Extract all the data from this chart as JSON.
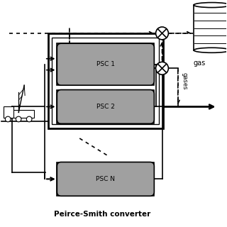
{
  "title": "Peirce-Smith converter",
  "gas_label": "gas",
  "gases_label": "gases",
  "psc_labels": [
    "PSC 1",
    "PSC 2",
    "PSC N"
  ],
  "bg_color": "#ffffff",
  "psc_fill": "#a0a0a0",
  "lw": 1.2,
  "tlw": 2.0
}
